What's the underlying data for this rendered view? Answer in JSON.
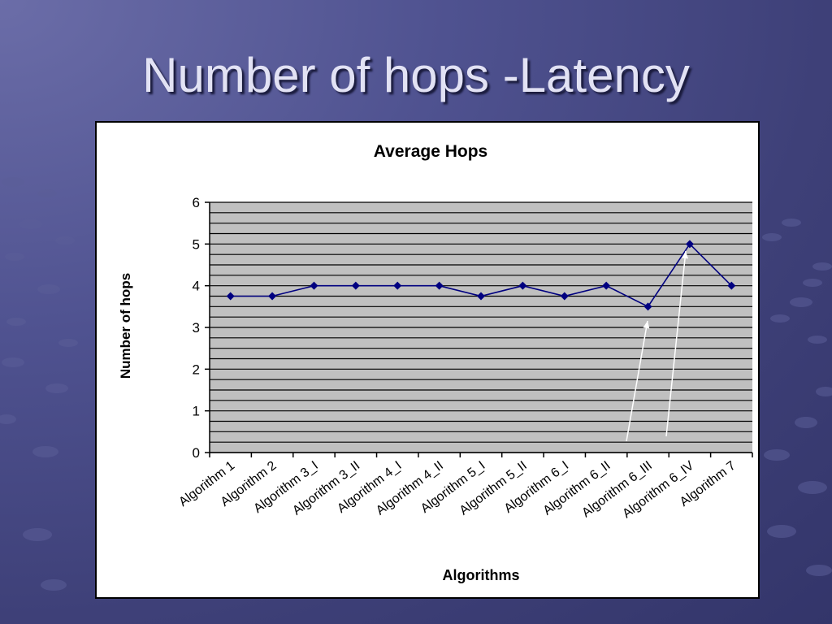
{
  "slide": {
    "title": "Number of hops -Latency"
  },
  "chart_data": {
    "type": "line",
    "title": "Average Hops",
    "xlabel": "Algorithms",
    "ylabel": "Number of hops",
    "categories": [
      "Algorithm 1",
      "Algorithm 2",
      "Algorithm 3_I",
      "Algorithm 3_II",
      "Algorithm 4_I",
      "Algorithm 4_II",
      "Algorithm 5_I",
      "Algorithm 5_II",
      "Algorithm 6_I",
      "Algorithm 6_II",
      "Algorithm 6_III",
      "Algorithm 6_IV",
      "Algorithm 7"
    ],
    "series": [
      {
        "values": [
          3.75,
          3.75,
          4,
          4,
          4,
          4,
          3.75,
          4,
          3.75,
          4,
          3.5,
          5,
          4
        ]
      }
    ],
    "ylim": [
      0,
      6
    ],
    "yticks": [
      0,
      1,
      2,
      3,
      4,
      5,
      6
    ],
    "grid": true,
    "legend": "none",
    "colors": {
      "line": "#000080",
      "plot_background": "#c0c0c0",
      "gridline": "#000000",
      "arrow": "#ffffff"
    },
    "annotations": [
      {
        "type": "arrow",
        "target_category": "Algorithm 6_III"
      },
      {
        "type": "arrow",
        "target_category": "Algorithm 6_IV"
      }
    ]
  }
}
